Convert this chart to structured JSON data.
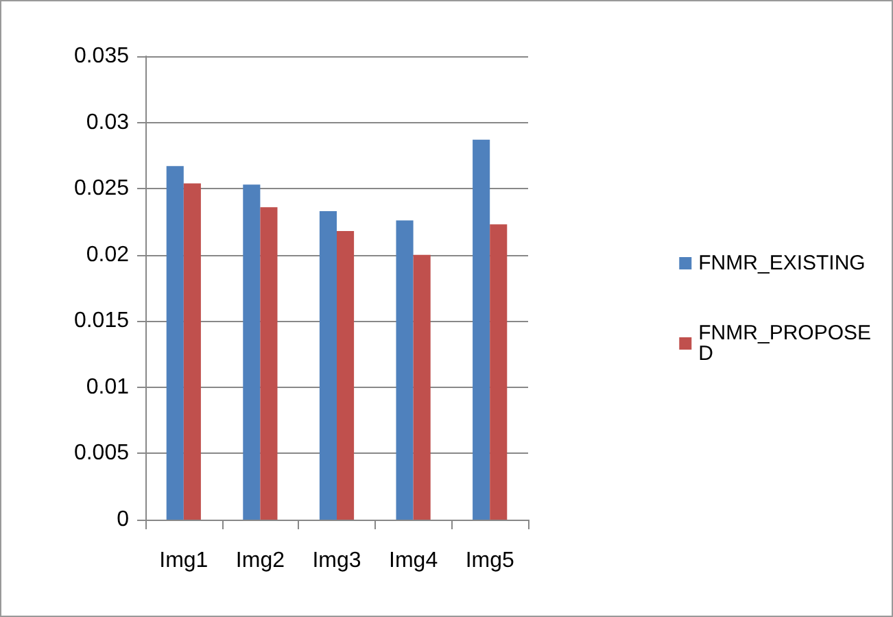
{
  "chart_data": {
    "type": "bar",
    "categories": [
      "Img1",
      "Img2",
      "Img3",
      "Img4",
      "Img5"
    ],
    "series": [
      {
        "name": "FNMR_EXISTING",
        "color": "#4f81bd",
        "values": [
          0.0267,
          0.0253,
          0.0233,
          0.0226,
          0.0287
        ]
      },
      {
        "name": "FNMR_PROPOSED",
        "color": "#c0504d",
        "values": [
          0.0254,
          0.0236,
          0.0218,
          0.02,
          0.0223
        ]
      }
    ],
    "ylim": [
      0,
      0.035
    ],
    "yticks": [
      0,
      0.005,
      0.01,
      0.015,
      0.02,
      0.025,
      0.03,
      0.035
    ],
    "grid": "y",
    "legend": "right"
  }
}
